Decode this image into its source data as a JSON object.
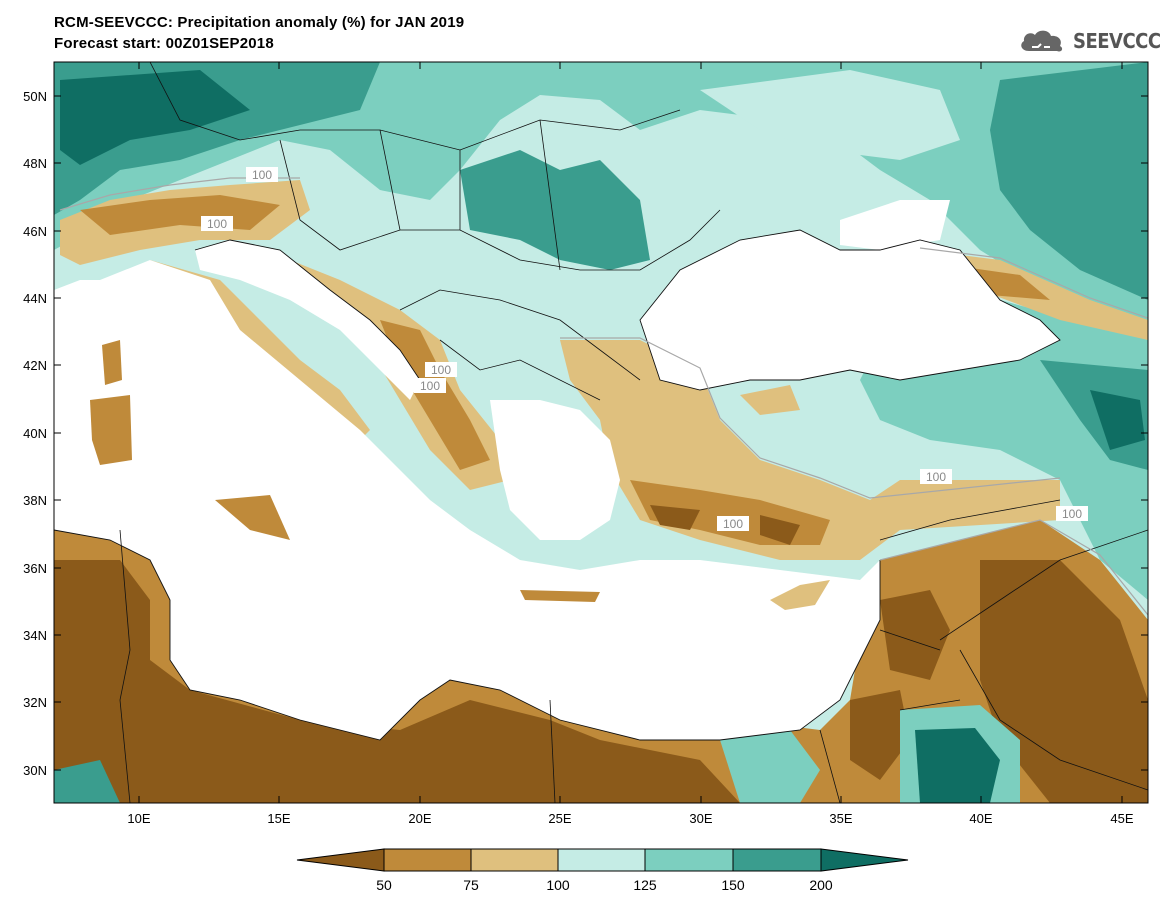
{
  "header": {
    "title": "RCM-SEEVCCC: Precipitation anomaly (%) for JAN 2019",
    "subtitle": "Forecast start: 00Z01SEP2018",
    "logo_text": "SEEVCCC"
  },
  "map": {
    "lat_labels": [
      "50N",
      "48N",
      "46N",
      "44N",
      "42N",
      "40N",
      "38N",
      "36N",
      "34N",
      "32N",
      "30N"
    ],
    "lon_labels": [
      "10E",
      "15E",
      "20E",
      "25E",
      "30E",
      "35E",
      "40E",
      "45E"
    ],
    "contour_label": "100"
  },
  "colorbar": {
    "labels": [
      "50",
      "75",
      "100",
      "125",
      "150",
      "200"
    ],
    "colors": [
      "#8b5a1a",
      "#bf8a3a",
      "#dfc07e",
      "#c5ece5",
      "#7ccfbf",
      "#3a9d8e",
      "#0f6e63"
    ]
  },
  "colors": {
    "dry_dark": "#8b5a1a",
    "dry": "#bf8a3a",
    "dry_light": "#dfc07e",
    "wet_light": "#c5ece5",
    "wet": "#7ccfbf",
    "wet_mid": "#3a9d8e",
    "wet_dark": "#0f6e63",
    "sea": "#ffffff"
  }
}
